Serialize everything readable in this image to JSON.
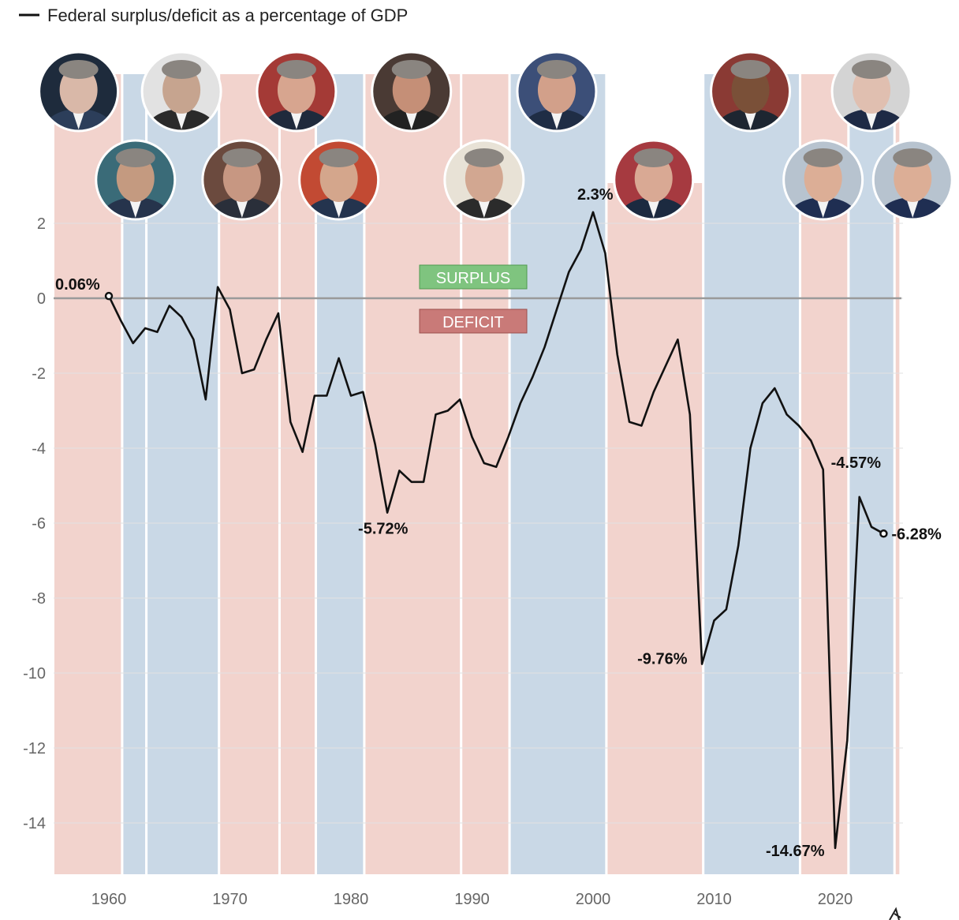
{
  "chart_data": {
    "type": "line",
    "legend": "Federal surplus/deficit as a percentage of GDP",
    "legend_placement": "top-left",
    "grid": true,
    "xlim": [
      1955.5,
      2025.3
    ],
    "ylim": [
      -15.5,
      3.2
    ],
    "xticks": [
      {
        "value": 1960,
        "label": "1960"
      },
      {
        "value": 1970,
        "label": "1970"
      },
      {
        "value": 1980,
        "label": "1980"
      },
      {
        "value": 1990,
        "label": "1990"
      },
      {
        "value": 2000,
        "label": "2000"
      },
      {
        "value": 2010,
        "label": "2010"
      },
      {
        "value": 2020,
        "label": "2020"
      }
    ],
    "yticks": [
      {
        "value": 2,
        "label": "2"
      },
      {
        "value": 0,
        "label": "0"
      },
      {
        "value": -2,
        "label": "-2"
      },
      {
        "value": -4,
        "label": "-4"
      },
      {
        "value": -6,
        "label": "-6"
      },
      {
        "value": -8,
        "label": "-8"
      },
      {
        "value": -10,
        "label": "-10"
      },
      {
        "value": -12,
        "label": "-12"
      },
      {
        "value": -14,
        "label": "-14"
      }
    ],
    "series": [
      {
        "color": "#111111",
        "points": [
          [
            1960,
            0.06
          ],
          [
            1961,
            -0.6
          ],
          [
            1962,
            -1.2
          ],
          [
            1963,
            -0.8
          ],
          [
            1964,
            -0.9
          ],
          [
            1965,
            -0.2
          ],
          [
            1966,
            -0.5
          ],
          [
            1967,
            -1.1
          ],
          [
            1968,
            -2.7
          ],
          [
            1969,
            0.3
          ],
          [
            1970,
            -0.3
          ],
          [
            1971,
            -2.0
          ],
          [
            1972,
            -1.9
          ],
          [
            1973,
            -1.1
          ],
          [
            1974,
            -0.4
          ],
          [
            1975,
            -3.3
          ],
          [
            1976,
            -4.1
          ],
          [
            1977,
            -2.6
          ],
          [
            1978,
            -2.6
          ],
          [
            1979,
            -1.6
          ],
          [
            1980,
            -2.6
          ],
          [
            1981,
            -2.5
          ],
          [
            1982,
            -3.9
          ],
          [
            1983,
            -5.72
          ],
          [
            1984,
            -4.6
          ],
          [
            1985,
            -4.9
          ],
          [
            1986,
            -4.9
          ],
          [
            1987,
            -3.1
          ],
          [
            1988,
            -3.0
          ],
          [
            1989,
            -2.7
          ],
          [
            1990,
            -3.7
          ],
          [
            1991,
            -4.4
          ],
          [
            1992,
            -4.5
          ],
          [
            1993,
            -3.7
          ],
          [
            1994,
            -2.8
          ],
          [
            1995,
            -2.1
          ],
          [
            1996,
            -1.3
          ],
          [
            1997,
            -0.3
          ],
          [
            1998,
            0.7
          ],
          [
            1999,
            1.3
          ],
          [
            2000,
            2.3
          ],
          [
            2001,
            1.2
          ],
          [
            2002,
            -1.5
          ],
          [
            2003,
            -3.3
          ],
          [
            2004,
            -3.4
          ],
          [
            2005,
            -2.5
          ],
          [
            2006,
            -1.8
          ],
          [
            2007,
            -1.1
          ],
          [
            2008,
            -3.1
          ],
          [
            2009,
            -9.76
          ],
          [
            2010,
            -8.6
          ],
          [
            2011,
            -8.3
          ],
          [
            2012,
            -6.6
          ],
          [
            2013,
            -4.0
          ],
          [
            2014,
            -2.8
          ],
          [
            2015,
            -2.4
          ],
          [
            2016,
            -3.1
          ],
          [
            2017,
            -3.4
          ],
          [
            2018,
            -3.8
          ],
          [
            2019,
            -4.57
          ],
          [
            2020,
            -14.67
          ],
          [
            2021,
            -11.8
          ],
          [
            2022,
            -5.3
          ],
          [
            2023,
            -6.1
          ],
          [
            2024,
            -6.28
          ]
        ]
      }
    ],
    "terms": [
      {
        "party": "republican",
        "start": 1955.5,
        "end": 1961.0
      },
      {
        "party": "democrat",
        "start": 1961.2,
        "end": 1963.0
      },
      {
        "party": "democrat",
        "start": 1963.2,
        "end": 1969.0
      },
      {
        "party": "republican",
        "start": 1969.2,
        "end": 1974.0
      },
      {
        "party": "republican",
        "start": 1974.2,
        "end": 1977.0
      },
      {
        "party": "democrat",
        "start": 1977.2,
        "end": 1981.0
      },
      {
        "party": "republican",
        "start": 1981.2,
        "end": 1989.0
      },
      {
        "party": "republican",
        "start": 1989.2,
        "end": 1993.0
      },
      {
        "party": "democrat",
        "start": 1993.2,
        "end": 2001.0
      },
      {
        "party": "republican",
        "start": 2001.2,
        "end": 2009.0
      },
      {
        "party": "democrat",
        "start": 2009.2,
        "end": 2017.0
      },
      {
        "party": "republican",
        "start": 2017.2,
        "end": 2021.0
      },
      {
        "party": "democrat",
        "start": 2021.2,
        "end": 2024.8
      },
      {
        "party": "republican",
        "start": 2025.0,
        "end": 2025.3
      }
    ],
    "annotations": [
      {
        "text": "0.06%",
        "x": 1960,
        "y": 0.06
      },
      {
        "text": "-5.72%",
        "x": 1983,
        "y": -5.72
      },
      {
        "text": "2.3%",
        "x": 2000,
        "y": 2.3
      },
      {
        "text": "-9.76%",
        "x": 2009,
        "y": -9.76
      },
      {
        "text": "-4.57%",
        "x": 2019,
        "y": -4.57
      },
      {
        "text": "-14.67%",
        "x": 2020,
        "y": -14.67
      },
      {
        "text": "-6.28%",
        "x": 2024,
        "y": -6.28
      }
    ],
    "zone_labels": {
      "surplus": "SURPLUS",
      "deficit": "DEFICIT"
    },
    "colors": {
      "republican": "#f2d3cd",
      "democrat": "#c9d8e6",
      "line": "#111111",
      "zero_line": "#9a9a9a",
      "grid": "#e2e2e2",
      "surplus": "#7fc47f",
      "deficit": "#c97a78"
    },
    "portraits": [
      {
        "name": "portrait-eisenhower",
        "year": 1957.5,
        "row": 0,
        "shirt": "#2c3e5a",
        "skin": "#d9b8a8",
        "bg": "#1e2b3c"
      },
      {
        "name": "portrait-kennedy",
        "year": 1962.2,
        "row": 1,
        "shirt": "#26344c",
        "skin": "#c49a80",
        "bg": "#3a6b78"
      },
      {
        "name": "portrait-johnson",
        "year": 1966.0,
        "row": 0,
        "shirt": "#2a2a2a",
        "skin": "#c6a48f",
        "bg": "#e2e2e2"
      },
      {
        "name": "portrait-nixon",
        "year": 1971.0,
        "row": 1,
        "shirt": "#2a2f3a",
        "skin": "#c79782",
        "bg": "#6b4a3e"
      },
      {
        "name": "portrait-ford",
        "year": 1975.5,
        "row": 0,
        "shirt": "#1f2a3c",
        "skin": "#d7a58f",
        "bg": "#a43a36"
      },
      {
        "name": "portrait-carter",
        "year": 1979.0,
        "row": 1,
        "shirt": "#24344e",
        "skin": "#d4a68c",
        "bg": "#c24a33"
      },
      {
        "name": "portrait-reagan",
        "year": 1985.0,
        "row": 0,
        "shirt": "#222222",
        "skin": "#c58f77",
        "bg": "#4a3a34"
      },
      {
        "name": "portrait-bush-sr",
        "year": 1991.0,
        "row": 1,
        "shirt": "#2b2b2b",
        "skin": "#d2a791",
        "bg": "#e8e2d6"
      },
      {
        "name": "portrait-clinton",
        "year": 1997.0,
        "row": 0,
        "shirt": "#1f2d45",
        "skin": "#d2a08a",
        "bg": "#3c4f78"
      },
      {
        "name": "portrait-bush-jr",
        "year": 2005.0,
        "row": 1,
        "shirt": "#1c2a40",
        "skin": "#d9a994",
        "bg": "#a63a40"
      },
      {
        "name": "portrait-obama",
        "year": 2013.0,
        "row": 0,
        "shirt": "#1e2631",
        "skin": "#7a5038",
        "bg": "#8a3a34"
      },
      {
        "name": "portrait-trump-1",
        "year": 2019.0,
        "row": 1,
        "shirt": "#1f2e52",
        "skin": "#dcae96",
        "bg": "#b7c3cf"
      },
      {
        "name": "portrait-biden",
        "year": 2023.0,
        "row": 0,
        "shirt": "#1e2a45",
        "skin": "#e0bfb0",
        "bg": "#d4d4d4"
      },
      {
        "name": "portrait-trump-2",
        "year": 2026.4,
        "row": 1,
        "shirt": "#1f2e52",
        "skin": "#dcae96",
        "bg": "#b7c3cf"
      }
    ]
  }
}
